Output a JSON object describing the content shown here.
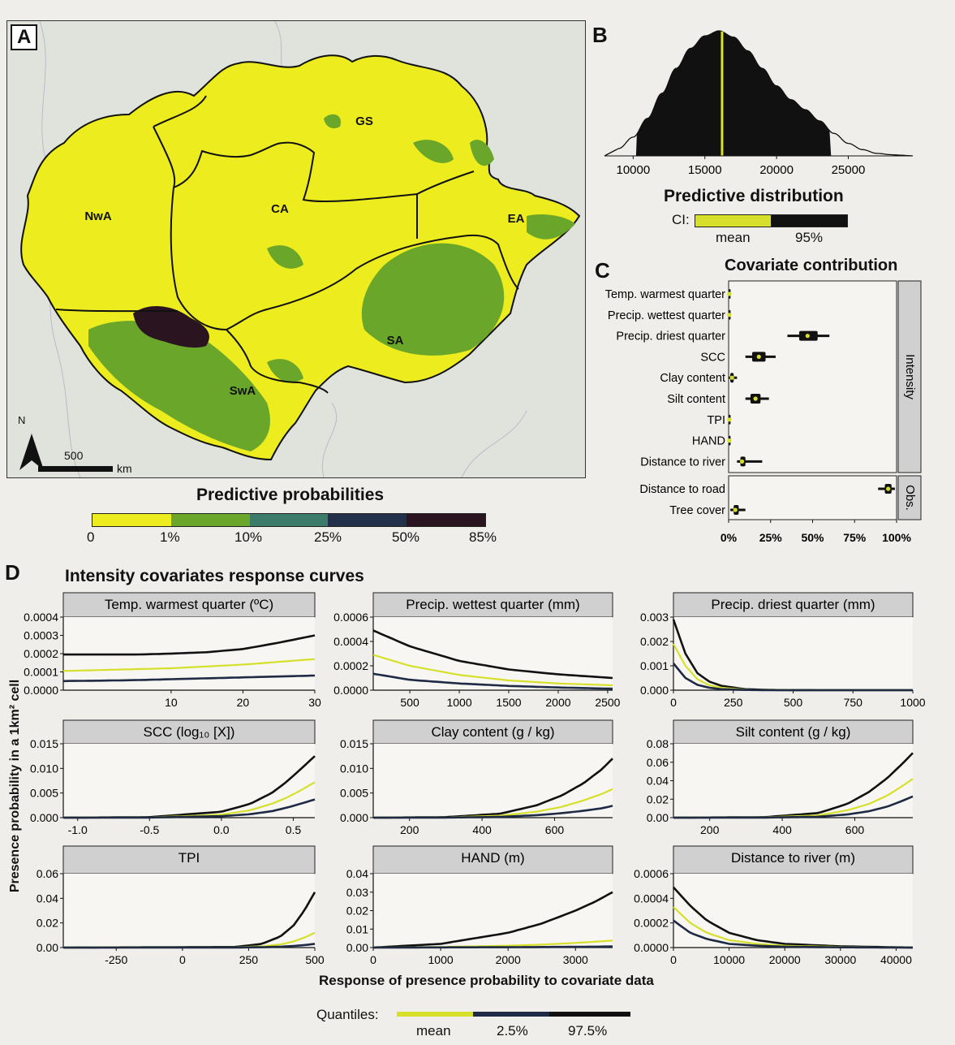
{
  "panels": {
    "a": "A",
    "b": "B",
    "c": "C",
    "d": "D"
  },
  "map": {
    "regions": [
      {
        "label": "NwA"
      },
      {
        "label": "GS"
      },
      {
        "label": "CA"
      },
      {
        "label": "EA"
      },
      {
        "label": "SA"
      },
      {
        "label": "SwA"
      }
    ],
    "north_label": "N",
    "scale_value": "500",
    "scale_unit": "km",
    "legend_title": "Predictive probabilities",
    "legend_ticks": [
      "0",
      "1%",
      "10%",
      "25%",
      "50%",
      "85%"
    ],
    "legend_colors": [
      "#ecec1e",
      "#6aa629",
      "#3c7b6a",
      "#22304a",
      "#2a1420"
    ]
  },
  "distribution": {
    "title": "Predictive distribution",
    "x_ticks": [
      "10000",
      "15000",
      "20000",
      "25000"
    ],
    "ci_label": "CI:",
    "ci_mean": "mean",
    "ci_95": "95%"
  },
  "contribution": {
    "title": "Covariate contribution",
    "strip_intensity": "Intensity",
    "strip_obs": "Obs.",
    "x_ticks": [
      "0%",
      "25%",
      "50%",
      "75%",
      "100%"
    ]
  },
  "response": {
    "title": "Intensity covariates response curves",
    "ylabel": "Presence probability in a 1km² cell",
    "xlabel": "Response of presence probability to covariate data",
    "quantiles_label": "Quantiles:",
    "quantile_mean": "mean",
    "quantile_low": "2.5%",
    "quantile_high": "97.5%"
  },
  "colors": {
    "mean": "#d6e02a",
    "band": "#111111",
    "map_low": "#ecec1e",
    "map_mid": "#6aa629",
    "map_high": "#2a1420"
  },
  "chart_data": [
    {
      "type": "area",
      "title": "Predictive distribution",
      "x": [
        9000,
        10000,
        11000,
        12000,
        13000,
        14000,
        15000,
        16000,
        17000,
        18000,
        19000,
        20000,
        21000,
        22000,
        23000,
        24000,
        25000,
        26000,
        27000,
        28000
      ],
      "density": [
        0.06,
        0.15,
        0.3,
        0.5,
        0.7,
        0.86,
        0.96,
        1.0,
        0.95,
        0.84,
        0.7,
        0.56,
        0.45,
        0.37,
        0.28,
        0.18,
        0.1,
        0.05,
        0.02,
        0.01
      ],
      "mean": 16200,
      "ci95": [
        10200,
        23800
      ],
      "xlim": [
        8000,
        29500
      ]
    },
    {
      "type": "box",
      "title": "Covariate contribution",
      "groups": [
        {
          "name": "Intensity",
          "categories": [
            {
              "label": "Temp. warmest quarter",
              "min": 0,
              "q1": 0.2,
              "median": 0.4,
              "q3": 0.6,
              "max": 1
            },
            {
              "label": "Precip. wettest quarter",
              "min": 0,
              "q1": 0.2,
              "median": 0.4,
              "q3": 0.6,
              "max": 1
            },
            {
              "label": "Precip. driest quarter",
              "min": 35,
              "q1": 42,
              "median": 47,
              "q3": 53,
              "max": 60
            },
            {
              "label": "SCC",
              "min": 10,
              "q1": 14,
              "median": 18,
              "q3": 22,
              "max": 28
            },
            {
              "label": "Clay content",
              "min": 0,
              "q1": 1,
              "median": 2,
              "q3": 3,
              "max": 5
            },
            {
              "label": "Silt content",
              "min": 10,
              "q1": 13,
              "median": 16,
              "q3": 19,
              "max": 24
            },
            {
              "label": "TPI",
              "min": 0,
              "q1": 0.2,
              "median": 0.4,
              "q3": 0.6,
              "max": 1
            },
            {
              "label": "HAND",
              "min": 0,
              "q1": 0.2,
              "median": 0.4,
              "q3": 0.6,
              "max": 1
            },
            {
              "label": "Distance to river",
              "min": 5,
              "q1": 7,
              "median": 8,
              "q3": 10,
              "max": 20
            }
          ]
        },
        {
          "name": "Obs.",
          "categories": [
            {
              "label": "Distance to road",
              "min": 89,
              "q1": 93,
              "median": 95,
              "q3": 97,
              "max": 99
            },
            {
              "label": "Tree cover",
              "min": 1,
              "q1": 3,
              "median": 4,
              "q3": 6,
              "max": 10
            }
          ]
        }
      ],
      "xlim": [
        0,
        100
      ]
    },
    {
      "type": "line",
      "title": "Temp. warmest quarter (ºC)",
      "xlim": [
        -5,
        30
      ],
      "ylim": [
        0,
        0.0004
      ],
      "x_ticks": [
        10,
        20,
        30
      ],
      "x_labels": [
        "10",
        "20",
        "30"
      ],
      "y_ticks": [
        0,
        0.0001,
        0.0002,
        0.0003,
        0.0004
      ],
      "y_labels": [
        "0.0000",
        "0.0001",
        "0.0002",
        "0.0003",
        "0.0004"
      ],
      "x": [
        -5,
        0,
        5,
        10,
        15,
        20,
        25,
        30
      ],
      "series": [
        {
          "name": "97.5%",
          "values": [
            0.000195,
            0.000195,
            0.000195,
            0.0002,
            0.000208,
            0.000225,
            0.00026,
            0.0003
          ]
        },
        {
          "name": "mean",
          "values": [
            0.000105,
            0.00011,
            0.000115,
            0.00012,
            0.00013,
            0.00014,
            0.000155,
            0.00017
          ]
        },
        {
          "name": "2.5%",
          "values": [
            5e-05,
            5.2e-05,
            5.5e-05,
            6e-05,
            6.5e-05,
            7e-05,
            7.5e-05,
            8e-05
          ]
        }
      ]
    },
    {
      "type": "line",
      "title": "Precip. wettest quarter (mm)",
      "xlim": [
        130,
        2550
      ],
      "ylim": [
        0,
        0.0006
      ],
      "x_ticks": [
        500,
        1000,
        1500,
        2000,
        2500
      ],
      "x_labels": [
        "500",
        "1000",
        "1500",
        "2000",
        "2500"
      ],
      "y_ticks": [
        0,
        0.0002,
        0.0004,
        0.0006
      ],
      "y_labels": [
        "0.0000",
        "0.0002",
        "0.0004",
        "0.0006"
      ],
      "x": [
        130,
        500,
        1000,
        1500,
        2000,
        2550
      ],
      "series": [
        {
          "name": "97.5%",
          "values": [
            0.00049,
            0.00036,
            0.00024,
            0.00017,
            0.00013,
            0.0001
          ]
        },
        {
          "name": "mean",
          "values": [
            0.00029,
            0.0002,
            0.000125,
            8e-05,
            5.5e-05,
            4e-05
          ]
        },
        {
          "name": "2.5%",
          "values": [
            0.000135,
            8.5e-05,
            5.5e-05,
            3.5e-05,
            2.2e-05,
            1.2e-05
          ]
        }
      ]
    },
    {
      "type": "line",
      "title": "Precip. driest quarter (mm)",
      "xlim": [
        0,
        1000
      ],
      "ylim": [
        0,
        0.003
      ],
      "x_ticks": [
        0,
        250,
        500,
        750,
        1000
      ],
      "x_labels": [
        "0",
        "250",
        "500",
        "750",
        "1000"
      ],
      "y_ticks": [
        0,
        0.001,
        0.002,
        0.003
      ],
      "y_labels": [
        "0.000",
        "0.001",
        "0.002",
        "0.003"
      ],
      "x": [
        0,
        50,
        100,
        150,
        200,
        300,
        400,
        500,
        700,
        1000
      ],
      "series": [
        {
          "name": "97.5%",
          "values": [
            0.0029,
            0.0015,
            0.0007,
            0.00035,
            0.00018,
            4e-05,
            1e-05,
            3e-06,
            0,
            0
          ]
        },
        {
          "name": "mean",
          "values": [
            0.0019,
            0.001,
            0.00045,
            0.0002,
            0.0001,
            2e-05,
            5e-06,
            1e-06,
            0,
            0
          ]
        },
        {
          "name": "2.5%",
          "values": [
            0.0011,
            0.0005,
            0.00022,
            0.0001,
            4e-05,
            1e-05,
            2e-06,
            0,
            0,
            0
          ]
        }
      ]
    },
    {
      "type": "line",
      "title": "SCC (log₁₀ [X])",
      "xlim": [
        -1.1,
        0.65
      ],
      "ylim": [
        0,
        0.015
      ],
      "x_ticks": [
        -1.0,
        -0.5,
        0.0,
        0.5
      ],
      "x_labels": [
        "-1.0",
        "-0.5",
        "0.0",
        "0.5"
      ],
      "y_ticks": [
        0,
        0.005,
        0.01,
        0.015
      ],
      "y_labels": [
        "0.000",
        "0.005",
        "0.010",
        "0.015"
      ],
      "x": [
        -1.1,
        -0.5,
        0.0,
        0.2,
        0.35,
        0.45,
        0.55,
        0.65
      ],
      "series": [
        {
          "name": "97.5%",
          "values": [
            0,
            0.0001,
            0.0012,
            0.0028,
            0.005,
            0.0072,
            0.0098,
            0.0125
          ]
        },
        {
          "name": "mean",
          "values": [
            0,
            5e-05,
            0.0006,
            0.0015,
            0.0028,
            0.004,
            0.0055,
            0.0072
          ]
        },
        {
          "name": "2.5%",
          "values": [
            0,
            2e-05,
            0.0003,
            0.0007,
            0.0013,
            0.002,
            0.0028,
            0.0037
          ]
        }
      ]
    },
    {
      "type": "line",
      "title": "Clay content (g / kg)",
      "xlim": [
        100,
        760
      ],
      "ylim": [
        0,
        0.015
      ],
      "x_ticks": [
        200,
        400,
        600
      ],
      "x_labels": [
        "200",
        "400",
        "600"
      ],
      "y_ticks": [
        0,
        0.005,
        0.01,
        0.015
      ],
      "y_labels": [
        "0.000",
        "0.005",
        "0.010",
        "0.015"
      ],
      "x": [
        100,
        300,
        450,
        550,
        620,
        680,
        730,
        760
      ],
      "series": [
        {
          "name": "97.5%",
          "values": [
            0,
            0.0001,
            0.0008,
            0.0025,
            0.0045,
            0.007,
            0.0098,
            0.012
          ]
        },
        {
          "name": "mean",
          "values": [
            0,
            5e-05,
            0.0004,
            0.0012,
            0.0022,
            0.0035,
            0.0048,
            0.0058
          ]
        },
        {
          "name": "2.5%",
          "values": [
            0,
            2e-05,
            0.00015,
            0.0005,
            0.0009,
            0.0014,
            0.0019,
            0.0024
          ]
        }
      ]
    },
    {
      "type": "line",
      "title": "Silt content (g / kg)",
      "xlim": [
        100,
        760
      ],
      "ylim": [
        0,
        0.08
      ],
      "x_ticks": [
        200,
        400,
        600
      ],
      "x_labels": [
        "200",
        "400",
        "600"
      ],
      "y_ticks": [
        0,
        0.02,
        0.04,
        0.06,
        0.08
      ],
      "y_labels": [
        "0.00",
        "0.02",
        "0.04",
        "0.06",
        "0.08"
      ],
      "x": [
        100,
        350,
        500,
        580,
        640,
        690,
        730,
        760
      ],
      "series": [
        {
          "name": "97.5%",
          "values": [
            0,
            0.0005,
            0.005,
            0.015,
            0.028,
            0.043,
            0.058,
            0.07
          ]
        },
        {
          "name": "mean",
          "values": [
            0,
            0.0003,
            0.0025,
            0.008,
            0.015,
            0.024,
            0.034,
            0.042
          ]
        },
        {
          "name": "2.5%",
          "values": [
            0,
            0.0001,
            0.001,
            0.0035,
            0.007,
            0.012,
            0.018,
            0.023
          ]
        }
      ]
    },
    {
      "type": "line",
      "title": "TPI",
      "xlim": [
        -450,
        500
      ],
      "ylim": [
        0,
        0.06
      ],
      "x_ticks": [
        -250,
        0,
        250,
        500
      ],
      "x_labels": [
        "-250",
        "0",
        "250",
        "500"
      ],
      "y_ticks": [
        0,
        0.02,
        0.04,
        0.06
      ],
      "y_labels": [
        "0.00",
        "0.02",
        "0.04",
        "0.06"
      ],
      "x": [
        -450,
        200,
        300,
        370,
        420,
        460,
        500
      ],
      "series": [
        {
          "name": "97.5%",
          "values": [
            0,
            0.0005,
            0.003,
            0.009,
            0.018,
            0.03,
            0.045
          ]
        },
        {
          "name": "mean",
          "values": [
            0,
            0.0002,
            0.001,
            0.0025,
            0.005,
            0.008,
            0.012
          ]
        },
        {
          "name": "2.5%",
          "values": [
            0,
            5e-05,
            0.0003,
            0.0007,
            0.0013,
            0.002,
            0.003
          ]
        }
      ]
    },
    {
      "type": "line",
      "title": "HAND (m)",
      "xlim": [
        0,
        3550
      ],
      "ylim": [
        0,
        0.04
      ],
      "x_ticks": [
        0,
        1000,
        2000,
        3000
      ],
      "x_labels": [
        "0",
        "1000",
        "2000",
        "3000"
      ],
      "y_ticks": [
        0,
        0.01,
        0.02,
        0.03,
        0.04
      ],
      "y_labels": [
        "0.00",
        "0.01",
        "0.02",
        "0.03",
        "0.04"
      ],
      "x": [
        0,
        1000,
        2000,
        2500,
        3000,
        3300,
        3550
      ],
      "series": [
        {
          "name": "97.5%",
          "values": [
            0,
            0.002,
            0.008,
            0.013,
            0.02,
            0.025,
            0.03
          ]
        },
        {
          "name": "mean",
          "values": [
            0,
            0.0003,
            0.001,
            0.0016,
            0.0025,
            0.0032,
            0.0038
          ]
        },
        {
          "name": "2.5%",
          "values": [
            0,
            0.0001,
            0.0002,
            0.0003,
            0.0004,
            0.0005,
            0.0006
          ]
        }
      ]
    },
    {
      "type": "line",
      "title": "Distance to river (m)",
      "xlim": [
        0,
        43000
      ],
      "ylim": [
        0,
        0.0006
      ],
      "x_ticks": [
        0,
        10000,
        20000,
        30000,
        40000
      ],
      "x_labels": [
        "0",
        "10000",
        "20000",
        "30000",
        "40000"
      ],
      "y_ticks": [
        0,
        0.0002,
        0.0004,
        0.0006
      ],
      "y_labels": [
        "0.0000",
        "0.0002",
        "0.0004",
        "0.0006"
      ],
      "x": [
        0,
        3000,
        6000,
        10000,
        15000,
        20000,
        30000,
        43000
      ],
      "series": [
        {
          "name": "97.5%",
          "values": [
            0.00049,
            0.00034,
            0.00022,
            0.00012,
            6e-05,
            3e-05,
            1e-05,
            0
          ]
        },
        {
          "name": "mean",
          "values": [
            0.00033,
            0.0002,
            0.00012,
            6e-05,
            3e-05,
            1.5e-05,
            5e-06,
            0
          ]
        },
        {
          "name": "2.5%",
          "values": [
            0.00022,
            0.00012,
            7e-05,
            3e-05,
            1.5e-05,
            7e-06,
            2e-06,
            0
          ]
        }
      ]
    }
  ]
}
